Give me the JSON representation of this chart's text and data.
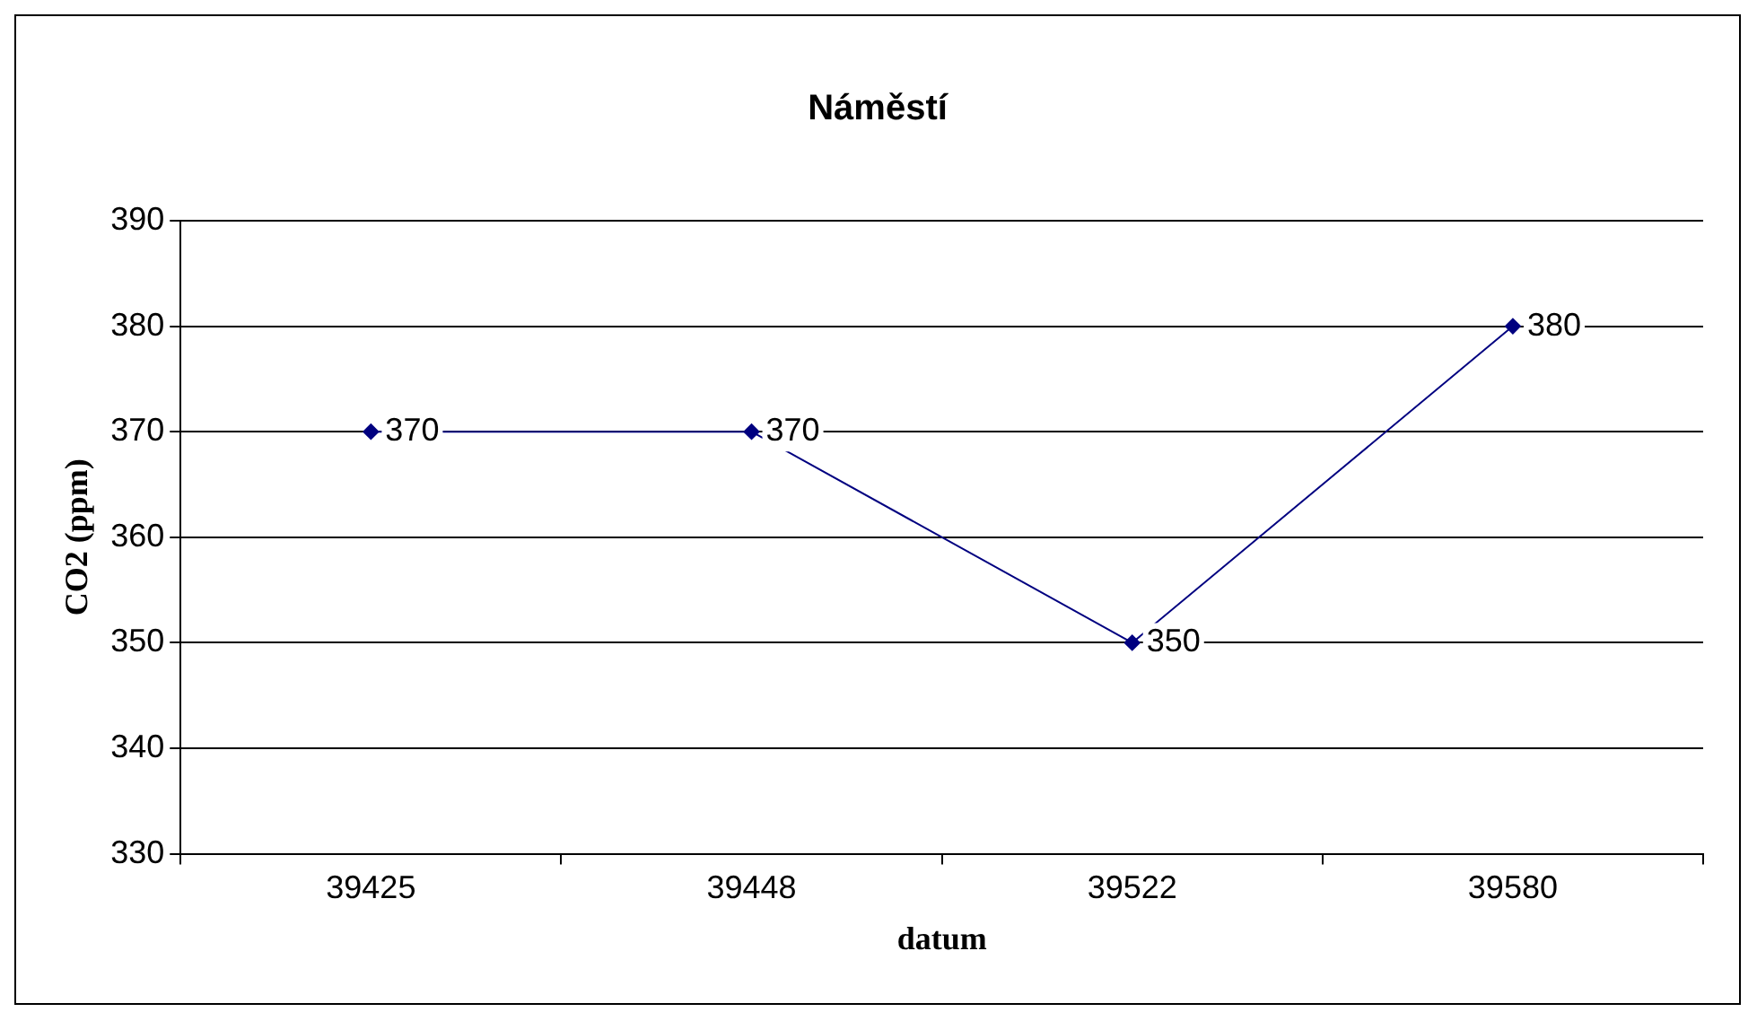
{
  "chart_data": {
    "type": "line",
    "title": "Náměstí",
    "xlabel": "datum",
    "ylabel": "CO2 (ppm)",
    "categories": [
      "39425",
      "39448",
      "39522",
      "39580"
    ],
    "series": [
      {
        "color": "#000080",
        "values": [
          370,
          370,
          350,
          380
        ]
      }
    ],
    "ylim": [
      330,
      390
    ],
    "yticks": [
      330,
      340,
      350,
      360,
      370,
      380,
      390
    ],
    "grid": "y",
    "marker": "diamond",
    "line_style": "solid",
    "data_labels": true,
    "legend": false
  }
}
